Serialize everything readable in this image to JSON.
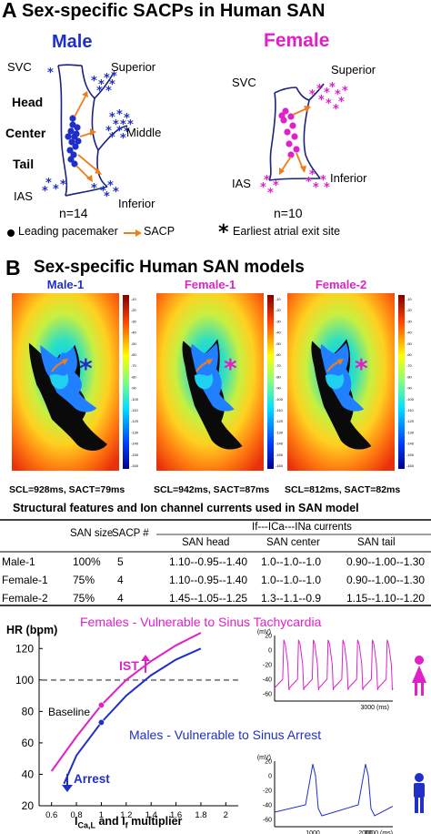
{
  "panelA": {
    "letter": "A",
    "title": "Sex-specific SACPs in Human SAN",
    "male": {
      "title": "Male",
      "labels": {
        "svc": "SVC",
        "superior": "Superior",
        "head": "Head",
        "center": "Center",
        "tail": "Tail",
        "middle": "Middle",
        "ias": "IAS",
        "inferior": "Inferior"
      },
      "n": "n=14"
    },
    "female": {
      "title": "Female",
      "labels": {
        "svc": "SVC",
        "superior": "Superior",
        "ias": "IAS",
        "inferior": "Inferior"
      },
      "n": "n=10"
    },
    "legend": {
      "leading": "Leading pacemaker",
      "sacp": "SACP",
      "exit": "Earliest atrial exit site"
    }
  },
  "panelB": {
    "letter": "B",
    "title": "Sex-specific Human SAN models",
    "models": [
      {
        "name": "Male-1",
        "caption": "SCL=928ms, SACT=79ms",
        "color": "#1f2fc8",
        "marker_color": "#1f2fc8"
      },
      {
        "name": "Female-1",
        "caption": "SCL=942ms, SACT=87ms",
        "color": "#e020c8",
        "marker_color": "#e020c8"
      },
      {
        "name": "Female-2",
        "caption": "SCL=812ms, SACT=82ms",
        "color": "#e020c8",
        "marker_color": "#e020c8"
      }
    ],
    "colorbar_ticks": [
      "-10",
      "-20",
      "-30",
      "-40",
      "-50",
      "-60",
      "-70",
      "-80",
      "-90",
      "-100",
      "-110",
      "-120",
      "-130",
      "-140",
      "-150",
      "-160"
    ],
    "table": {
      "title": "Structural features and Ion channel currents  used in SAN model",
      "group_header": "If---ICa---INa currents",
      "headers": [
        "",
        "SAN size",
        "SACP #",
        "SAN head",
        "SAN center",
        "SAN tail"
      ],
      "rows": [
        [
          "Male-1",
          "100%",
          "5",
          "1.10--0.95--1.40",
          "1.0--1.0--1.0",
          "0.90--1.00--1.30"
        ],
        [
          "Female-1",
          "75%",
          "4",
          "1.10--0.95--1.40",
          "1.0--1.0--1.0",
          "0.90--1.00--1.30"
        ],
        [
          "Female-2",
          "75%",
          "4",
          "1.45--1.05--1.25",
          "1.3--1.1--0.9",
          "1.15--1.10--1.20"
        ]
      ]
    }
  },
  "panelC": {
    "hr_label": "HR (bpm)",
    "female_title": "Females - Vulnerable to Sinus Tachycardia",
    "male_title": "Males - Vulnerable to Sinus Arrest",
    "ist": "IST",
    "baseline": "Baseline",
    "arrest": "Arrest",
    "xlabel_main": "I",
    "xlabel_sub1": "Ca,L",
    "xlabel_mid": " and I",
    "xlabel_sub2": "f",
    "xlabel_end": " multiplier",
    "colors": {
      "female": "#e020c8",
      "male": "#1f2fc8",
      "sacp": "#f07d1a"
    },
    "chart_data": {
      "type": "line",
      "xlabel": "ICa,L and If multiplier",
      "ylabel": "HR (bpm)",
      "x_ticks": [
        "0.6",
        "0.8",
        "1",
        "1.2",
        "1.4",
        "1.6",
        "1.8",
        "2"
      ],
      "y_ticks": [
        "120",
        "100",
        "80",
        "60",
        "40",
        "20"
      ],
      "xlim": [
        0.5,
        2.1
      ],
      "ylim": [
        20,
        130
      ],
      "threshold": 100,
      "series": [
        {
          "name": "Females",
          "x": [
            0.6,
            0.8,
            1.0,
            1.2,
            1.4,
            1.6,
            1.8
          ],
          "y": [
            42,
            64,
            84,
            100,
            112,
            122,
            130
          ]
        },
        {
          "name": "Males",
          "x": [
            0.7,
            0.8,
            1.0,
            1.2,
            1.4,
            1.6,
            1.8
          ],
          "y": [
            34,
            52,
            73,
            90,
            103,
            113,
            120
          ]
        }
      ],
      "baseline_points": [
        {
          "x": 1.0,
          "y": 84
        },
        {
          "x": 1.0,
          "y": 73
        }
      ]
    },
    "trace_female": {
      "ylabel": "(mV)",
      "y_ticks": [
        "20",
        "0",
        "-20",
        "-40",
        "-60"
      ],
      "x_ticks": [
        "3000 (ms)"
      ]
    },
    "trace_male": {
      "ylabel": "(mV)",
      "y_ticks": [
        "20",
        "0",
        "-20",
        "-40",
        "-60"
      ],
      "x_ticks": [
        "1000",
        "2000",
        "3000 (ms)"
      ]
    }
  }
}
